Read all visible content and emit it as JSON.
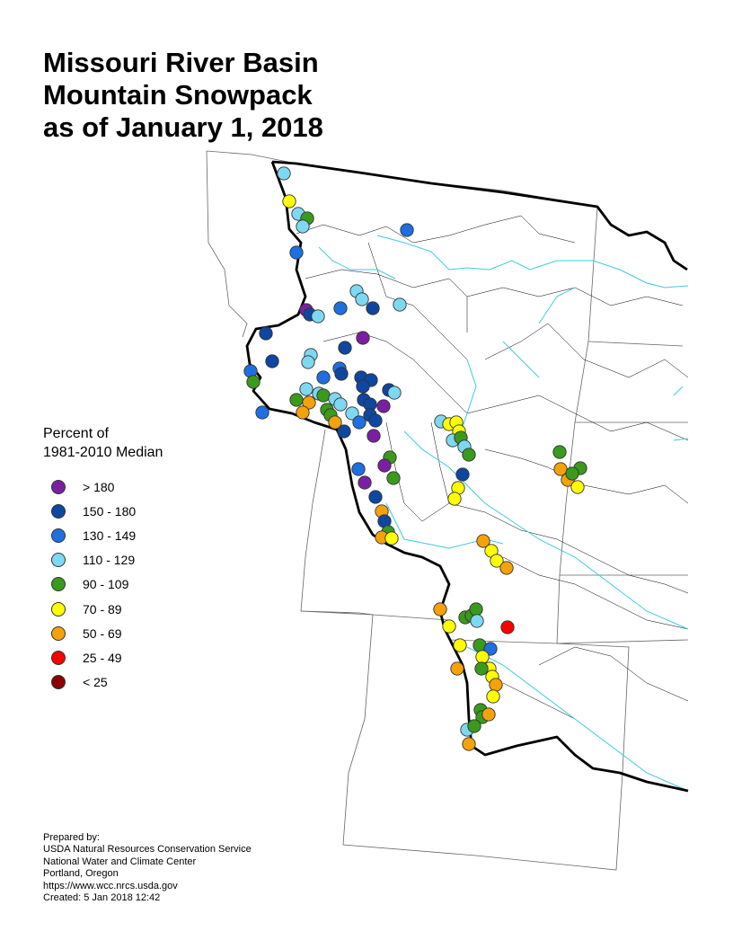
{
  "title": {
    "lines": [
      "Missouri River Basin",
      "Mountain Snowpack",
      "as of January 1, 2018"
    ]
  },
  "legend": {
    "heading_lines": [
      "Percent of",
      "1981-2010 Median"
    ],
    "items": [
      {
        "label": "> 180",
        "color": "#7b1fa2"
      },
      {
        "label": "150 - 180",
        "color": "#0d47a1"
      },
      {
        "label": "130 - 149",
        "color": "#1e6fe0"
      },
      {
        "label": "110 - 129",
        "color": "#7fd8f2"
      },
      {
        "label": "90 - 109",
        "color": "#3a9a1c"
      },
      {
        "label": "70 - 89",
        "color": "#ffff00"
      },
      {
        "label": "50 - 69",
        "color": "#f5a20a"
      },
      {
        "label": "25 - 49",
        "color": "#ff0000"
      },
      {
        "label": "< 25",
        "color": "#8b0000"
      }
    ]
  },
  "credits": {
    "lines": [
      "Prepared by:",
      "USDA Natural Resources Conservation Service",
      "National Water and Climate Center",
      "Portland, Oregon",
      "https://www.wcc.nrcs.usda.gov",
      "Created:   5 Jan 2018   12:42"
    ]
  },
  "colors": {
    "state_line": "#666666",
    "basin_boundary": "#000000",
    "sub_basin": "#000000",
    "river": "#3ec9e6",
    "site_outline": "#333333"
  }
}
